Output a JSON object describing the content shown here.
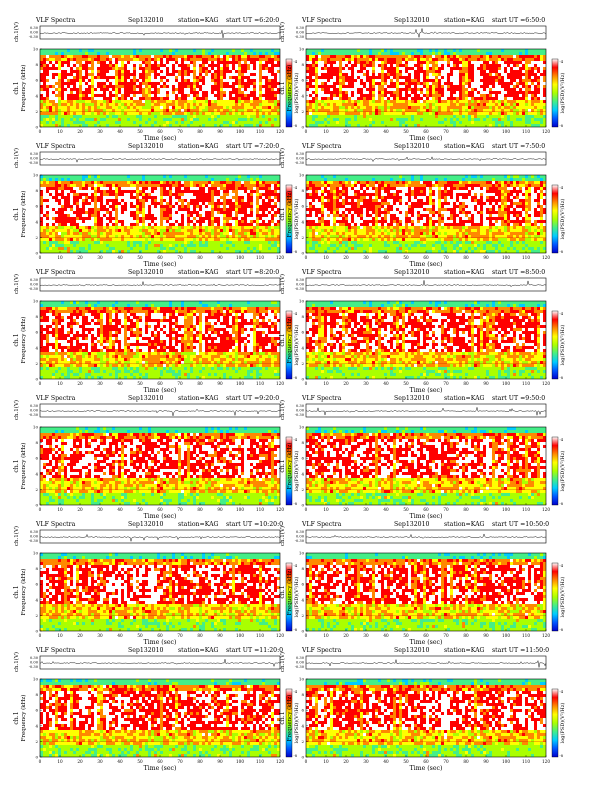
{
  "chart_data": {
    "type": "heatmap",
    "shared": {
      "title_prefix": "VLF Spectra",
      "date": "Sep132010",
      "station": "station=KAG",
      "time_prefix": "start  UT  =",
      "trace_label": "ch.1(V)",
      "trace_ticks": [
        "0.30",
        "0.00",
        "-0.30"
      ],
      "ylabel_top": "ch.1",
      "ylabel_bottom": "Frequency (kHz)",
      "xlabel": "Time (sec)",
      "xticks": [
        0,
        10,
        20,
        30,
        40,
        50,
        60,
        70,
        80,
        90,
        100,
        110,
        120
      ],
      "yticks": [
        0,
        2,
        4,
        6,
        8,
        10
      ],
      "xlim": [
        0,
        120
      ],
      "ylim": [
        0,
        10
      ],
      "colorbar_label": "log(PSD)(V²/Hz)",
      "colorbar_ticks": [
        "-4",
        "-8"
      ],
      "colormap": [
        "#0000cc",
        "#0055ff",
        "#00ccff",
        "#44ee88",
        "#aaff00",
        "#ffff00",
        "#ff8800",
        "#ff0000",
        "#ffffff"
      ]
    },
    "panels": [
      {
        "start": "6:20:0",
        "col": 0,
        "row": 0
      },
      {
        "start": "6:50:0",
        "col": 1,
        "row": 0
      },
      {
        "start": "7:20:0",
        "col": 0,
        "row": 1
      },
      {
        "start": "7:50:0",
        "col": 1,
        "row": 1
      },
      {
        "start": "8:20:0",
        "col": 0,
        "row": 2
      },
      {
        "start": "8:50:0",
        "col": 1,
        "row": 2
      },
      {
        "start": "9:20:0",
        "col": 0,
        "row": 3
      },
      {
        "start": "9:50:0",
        "col": 1,
        "row": 3
      },
      {
        "start": "10:20:0",
        "col": 0,
        "row": 4
      },
      {
        "start": "10:50:0",
        "col": 1,
        "row": 4
      },
      {
        "start": "11:20:0",
        "col": 0,
        "row": 5
      },
      {
        "start": "11:50:0",
        "col": 1,
        "row": 5
      }
    ]
  }
}
